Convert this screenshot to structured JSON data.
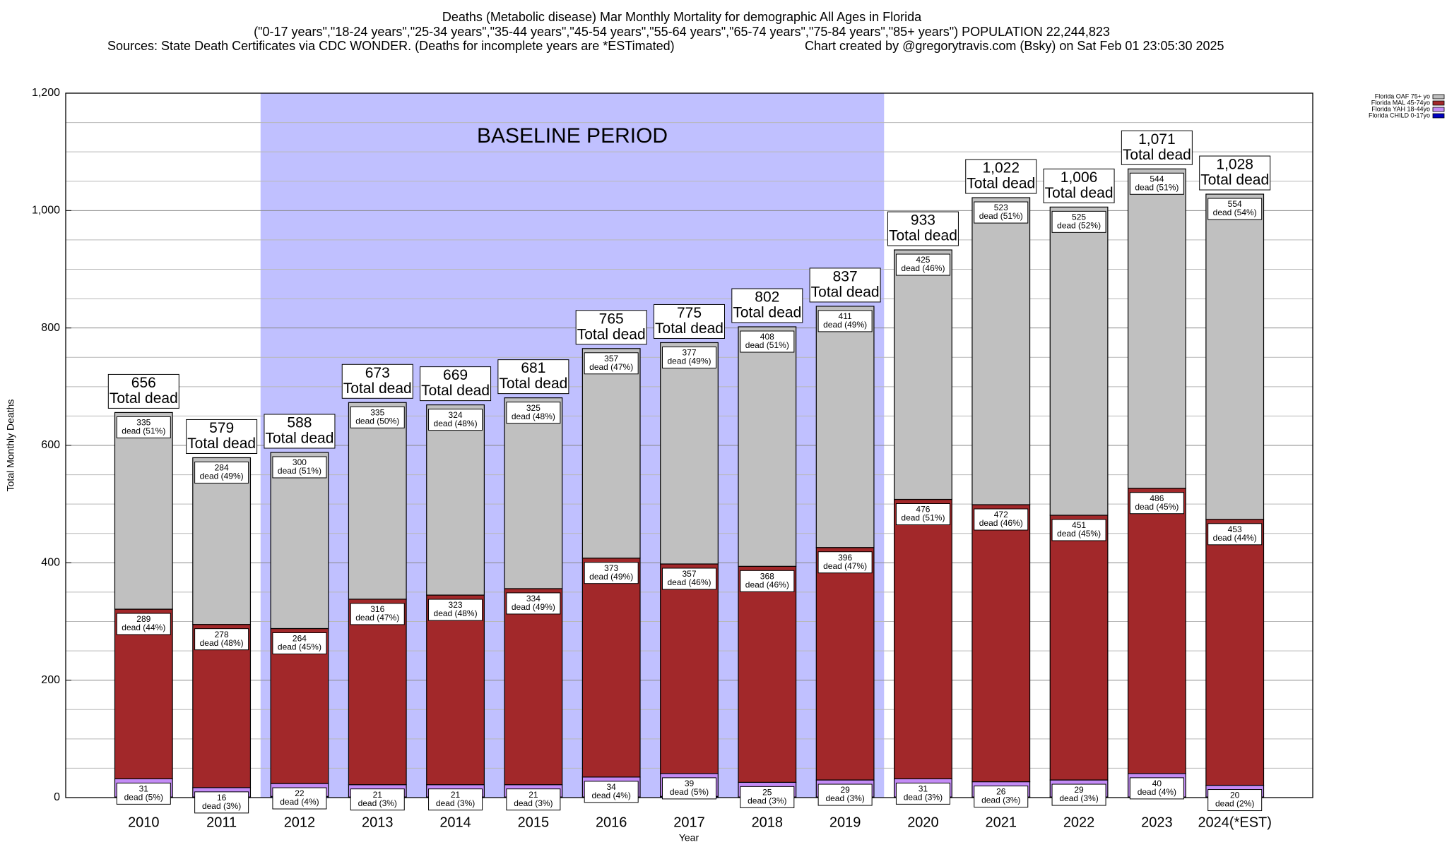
{
  "chart_data": {
    "type": "stacked_bar",
    "title": "Deaths (Metabolic disease) Mar Monthly Mortality for demographic All Ages in Florida",
    "subtitle": "(\"0-17 years\",\"18-24 years\",\"25-34 years\",\"35-44 years\",\"45-54 years\",\"55-64 years\",\"65-74 years\",\"75-84 years\",\"85+ years\") POPULATION 22,244,823",
    "source": "Sources: State Death Certificates via CDC WONDER. (Deaths for incomplete years are *ESTimated)",
    "credit": "Chart created by @gregorytravis.com (Bsky) on Sat Feb 01 23:05:30 2025",
    "x_label": "Year",
    "y_label": "Total Monthly Deaths",
    "categories": [
      "2010",
      "2011",
      "2012",
      "2013",
      "2014",
      "2015",
      "2016",
      "2017",
      "2018",
      "2019",
      "2020",
      "2021",
      "2022",
      "2023",
      "2024(*EST)"
    ],
    "series": [
      {
        "name": "Florida CHILD 0-17yo",
        "color": "#0000c0",
        "values": [
          1,
          1,
          2,
          1,
          1,
          1,
          1,
          2,
          1,
          1,
          1,
          1,
          1,
          1,
          1
        ]
      },
      {
        "name": "Florida YAH 18-44yo",
        "color": "#c48cf6",
        "values": [
          31,
          16,
          22,
          21,
          21,
          21,
          34,
          39,
          25,
          29,
          31,
          26,
          29,
          40,
          20
        ],
        "dead_labels": [
          "dead (5%)",
          "dead (3%)",
          "dead (4%)",
          "dead (3%)",
          "dead (3%)",
          "dead (3%)",
          "dead (4%)",
          "dead (5%)",
          "dead (3%)",
          "dead (3%)",
          "dead (3%)",
          "dead (3%)",
          "dead (3%)",
          "dead (4%)",
          "dead (2%)"
        ]
      },
      {
        "name": "Florida MAL 45-74yo",
        "color": "#a2282a",
        "values": [
          289,
          278,
          264,
          316,
          323,
          334,
          373,
          357,
          368,
          396,
          476,
          472,
          451,
          486,
          453
        ],
        "dead_labels": [
          "dead (44%)",
          "dead (48%)",
          "dead (45%)",
          "dead (47%)",
          "dead (48%)",
          "dead (49%)",
          "dead (49%)",
          "dead (46%)",
          "dead (46%)",
          "dead (47%)",
          "dead (51%)",
          "dead (46%)",
          "dead (45%)",
          "dead (45%)",
          "dead (44%)"
        ]
      },
      {
        "name": "Florida OAF 75+ yo",
        "color": "#c0c0c0",
        "values": [
          335,
          284,
          300,
          335,
          324,
          325,
          357,
          377,
          408,
          411,
          425,
          523,
          525,
          544,
          554
        ],
        "dead_labels": [
          "dead (51%)",
          "dead (49%)",
          "dead (51%)",
          "dead (50%)",
          "dead (48%)",
          "dead (48%)",
          "dead (47%)",
          "dead (49%)",
          "dead (51%)",
          "dead (49%)",
          "dead (46%)",
          "dead (51%)",
          "dead (52%)",
          "dead (51%)",
          "dead (54%)"
        ]
      }
    ],
    "totals": [
      656,
      579,
      588,
      673,
      669,
      681,
      765,
      775,
      802,
      837,
      933,
      1022,
      1006,
      1071,
      1028
    ],
    "totals_labels": [
      "656",
      "579",
      "588",
      "673",
      "669",
      "681",
      "765",
      "775",
      "802",
      "837",
      "933",
      "1,022",
      "1,006",
      "1,071",
      "1,028"
    ],
    "total_caption": "Total dead",
    "shaded_region": {
      "label": "BASELINE PERIOD",
      "from": "2012",
      "to": "2019",
      "color": "#c0c0ff"
    },
    "ylim": [
      0,
      1200
    ],
    "yticks": [
      0,
      200,
      400,
      600,
      800,
      {
        "value": 1000,
        "label": "1,000"
      },
      {
        "value": 1200,
        "label": "1,200"
      }
    ],
    "minor_yticks": [
      50,
      100,
      150,
      250,
      300,
      350,
      450,
      500,
      550,
      650,
      700,
      750,
      850,
      900,
      950,
      1050,
      1100,
      1150
    ],
    "grid": true,
    "legend": "top-right"
  }
}
